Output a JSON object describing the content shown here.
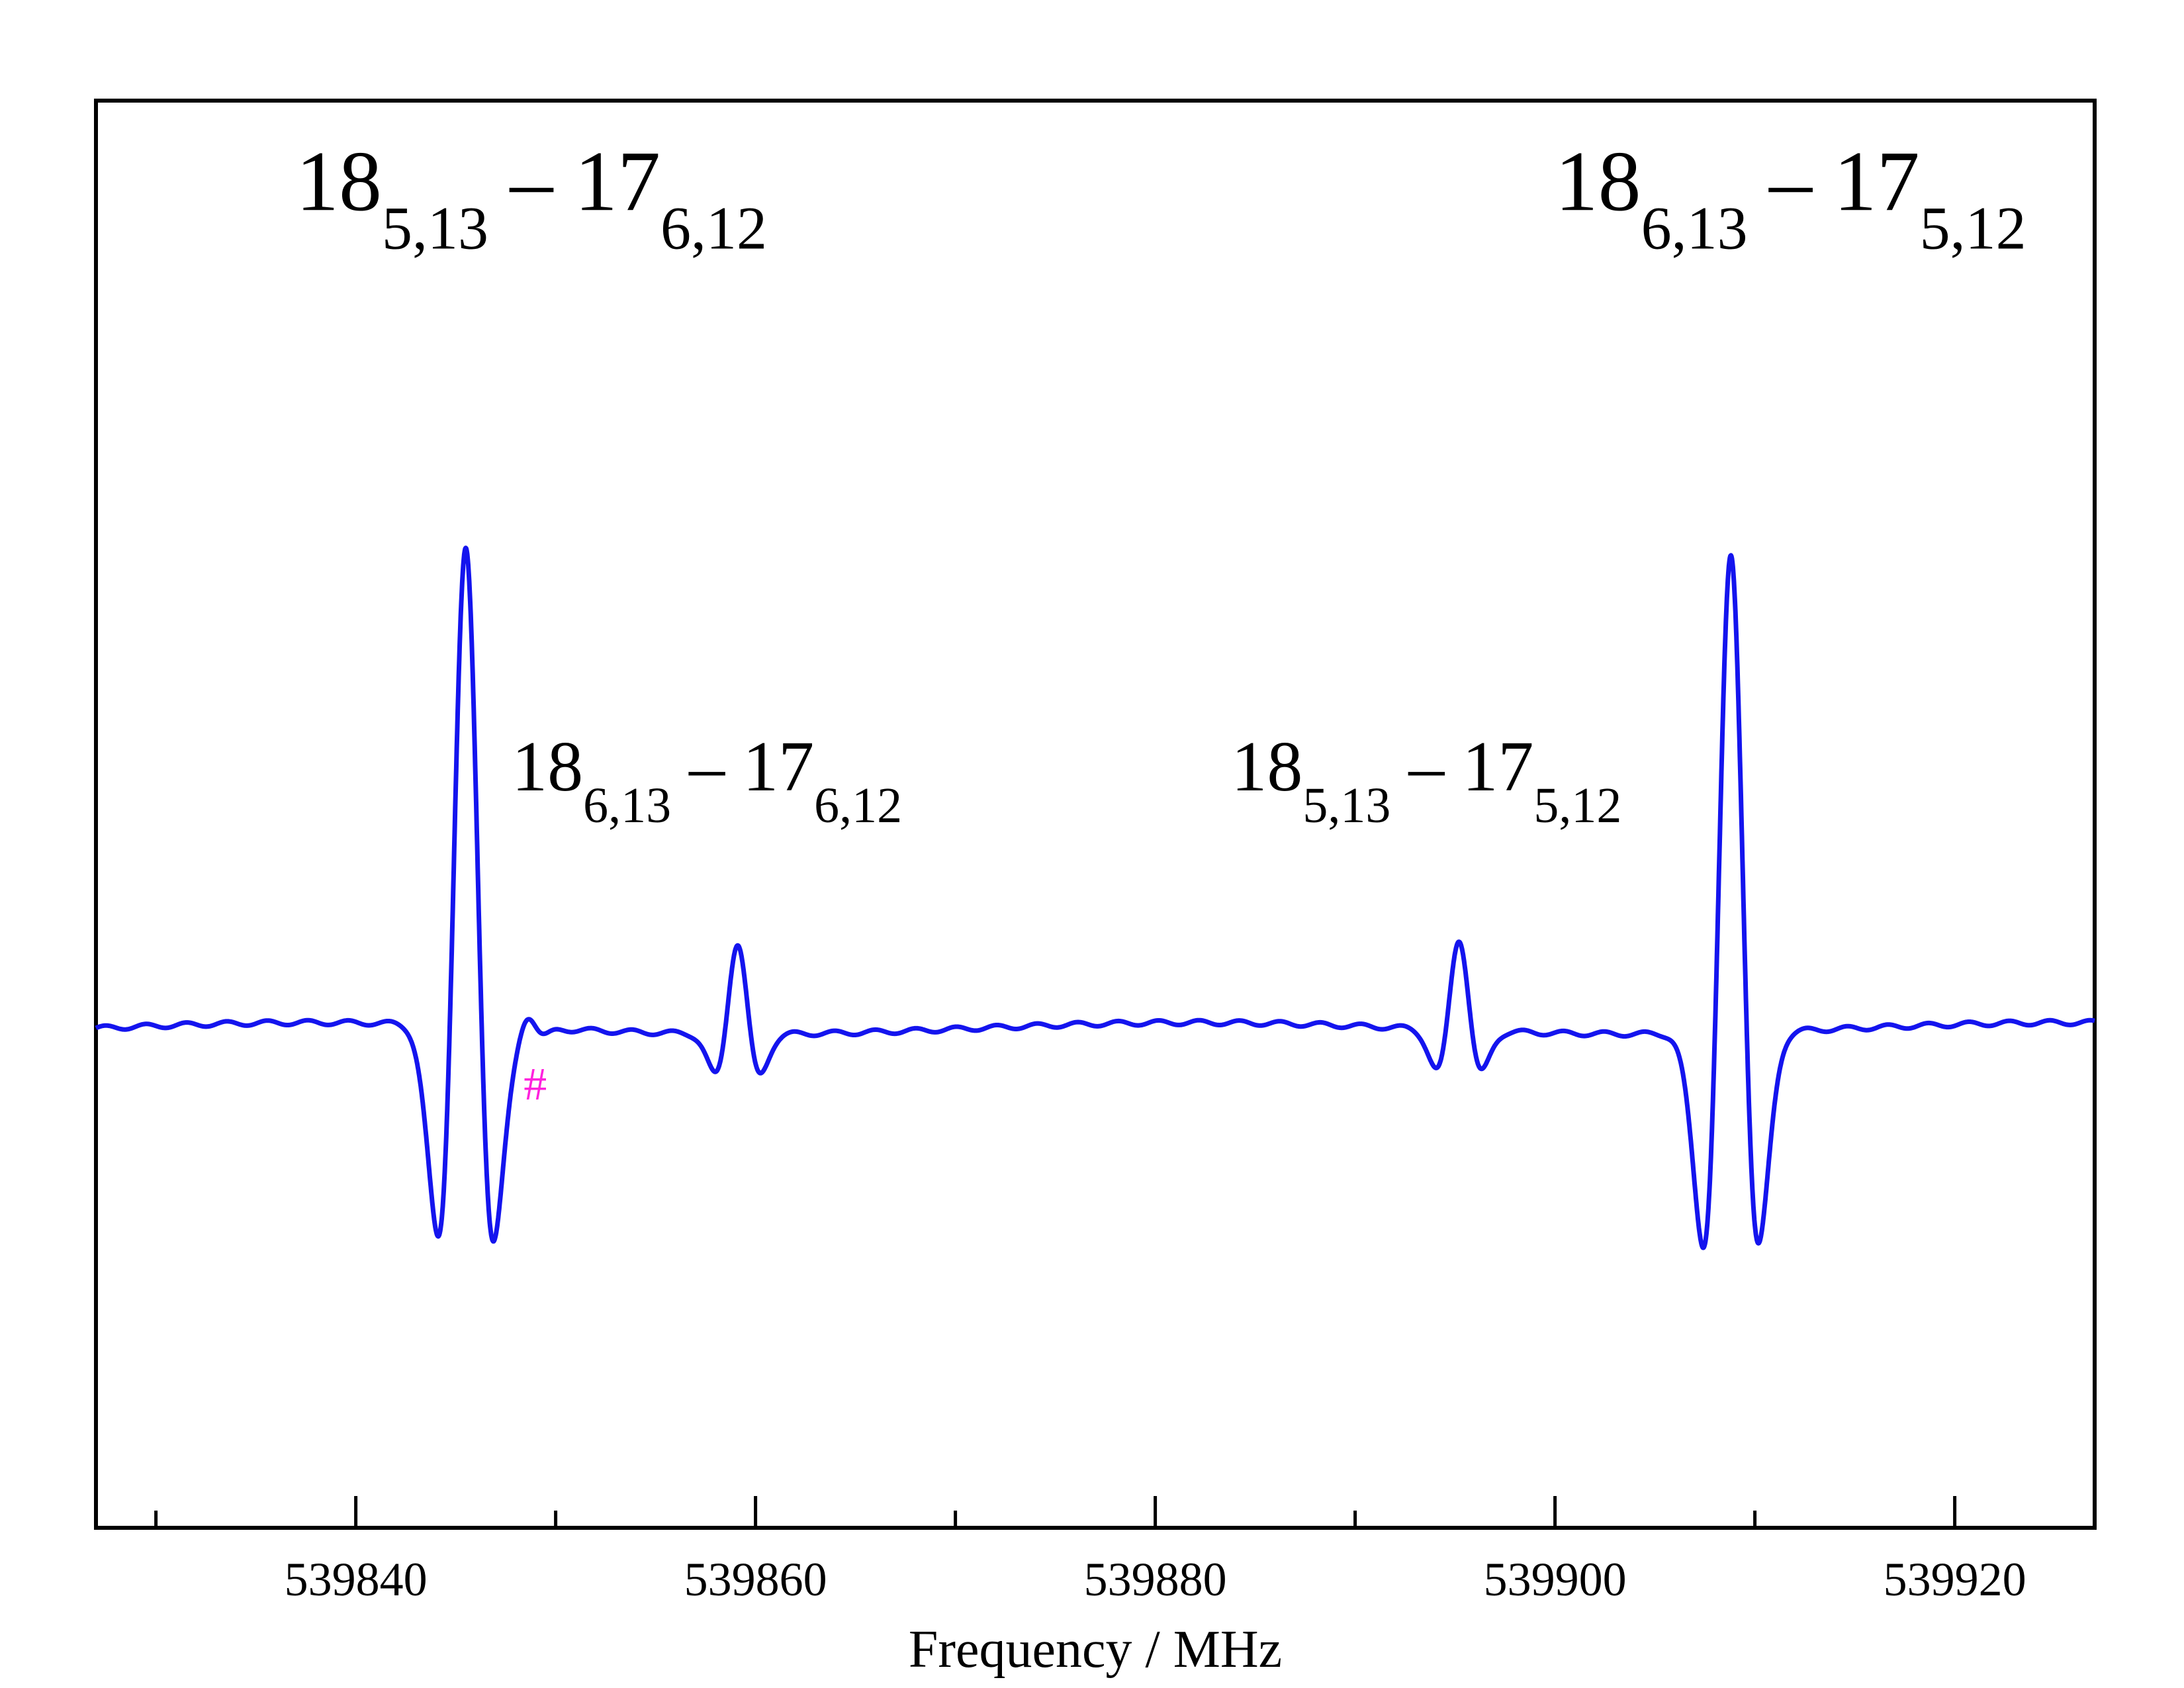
{
  "chart_data": {
    "type": "line",
    "title": "",
    "xlabel": "Frequency / MHz",
    "ylabel": "",
    "xlim": [
      539827,
      539927
    ],
    "ylim": [
      -1.05,
      1.95
    ],
    "grid": false,
    "x_ticks": [
      539840,
      539860,
      539880,
      539900,
      539920
    ],
    "x_tick_labels": [
      "539840",
      "539860",
      "539880",
      "539900",
      "539920"
    ],
    "x_minor_ticks": [
      539830,
      539850,
      539870,
      539890,
      539910
    ],
    "series_color": "#1414ee",
    "lines": [
      {
        "center": 539845.5,
        "amplitude": 1.0,
        "width": 0.8
      },
      {
        "center": 539908.8,
        "amplitude": 1.0,
        "width": 0.8
      },
      {
        "center": 539859.1,
        "amplitude": 0.19,
        "width": 0.65
      },
      {
        "center": 539895.2,
        "amplitude": 0.19,
        "width": 0.65
      },
      {
        "center": 539848.6,
        "amplitude": 0.03,
        "width": 0.5
      }
    ],
    "annotations": [
      {
        "name": "label-top-left",
        "main": "18",
        "sub1": "5,13",
        "dash": " – ",
        "main2": "17",
        "sub2": "6,12",
        "x": 539837,
        "y": 1.72,
        "size": "large"
      },
      {
        "name": "label-top-right",
        "main": "18",
        "sub1": "6,13",
        "dash": " – ",
        "main2": "17",
        "sub2": "5,12",
        "x": 539900,
        "y": 1.72,
        "size": "large"
      },
      {
        "name": "label-mid-left",
        "main": "18",
        "sub1": "6,13",
        "dash": " – ",
        "main2": "17",
        "sub2": "6,12",
        "x": 539847.8,
        "y": 0.5,
        "size": "medium"
      },
      {
        "name": "label-mid-right",
        "main": "18",
        "sub1": "5,13",
        "dash": " – ",
        "main2": "17",
        "sub2": "5,12",
        "x": 539883.8,
        "y": 0.5,
        "size": "medium"
      },
      {
        "name": "hash-marker",
        "main": "#",
        "x": 539848.4,
        "y": -0.15,
        "size": "small",
        "color": "#ff22dd"
      }
    ]
  }
}
